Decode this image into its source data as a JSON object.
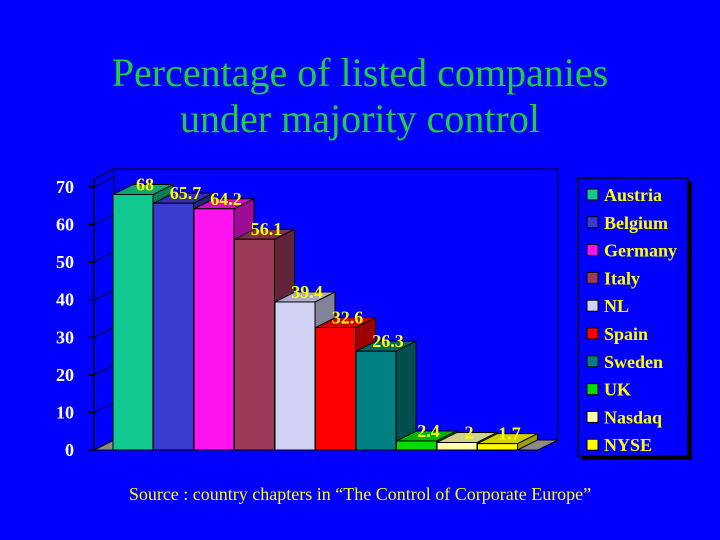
{
  "title": {
    "line1": "Percentage of listed companies",
    "line2": "under majority control"
  },
  "source": "Source : country chapters in “The Control of Corporate Europe”",
  "chart_data": {
    "type": "bar",
    "categories": [
      "Austria",
      "Belgium",
      "Germany",
      "Italy",
      "NL",
      "Spain",
      "Sweden",
      "UK",
      "Nasdaq",
      "NYSE"
    ],
    "values": [
      68,
      65.7,
      64.2,
      56.1,
      39.4,
      32.6,
      26.3,
      2.4,
      2,
      1.7
    ],
    "value_labels": [
      "68",
      "65.7",
      "64.2",
      "56.1",
      "39.4",
      "32.6",
      "26.3",
      "2.4",
      "2",
      "1.7"
    ],
    "colors": [
      "#10C890",
      "#3B3BD0",
      "#FF14F0",
      "#9C3A5A",
      "#D2D2F5",
      "#FF0000",
      "#008080",
      "#00DD00",
      "#FFFFAA",
      "#FFFF00"
    ],
    "yticks": [
      0,
      10,
      20,
      30,
      40,
      50,
      60,
      70
    ],
    "ylim": [
      0,
      70
    ],
    "legend_position": "right",
    "grid": false,
    "three_d": true
  }
}
